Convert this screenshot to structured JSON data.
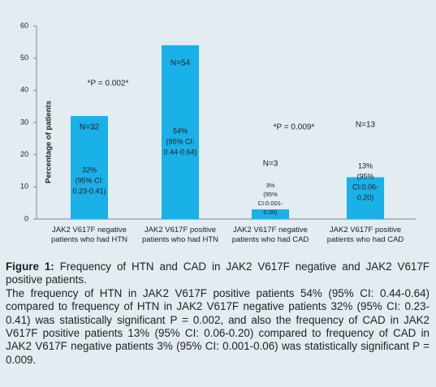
{
  "chart_data": {
    "type": "bar",
    "ylabel": "Percentage of patients",
    "categories": [
      "JAK2 V617F negative\npatients who had HTN",
      "JAK2 V617F positive\npatients who had HTN",
      "JAK2 V617F negative\npatients who had CAD",
      "JAK2 V617F positive\npatients who had CAD"
    ],
    "values": [
      32,
      54,
      3,
      13
    ],
    "value_labels": [
      "32%",
      "54%",
      "3%",
      "13%"
    ],
    "n_labels": [
      "N=32",
      "N=54",
      "N=3",
      "N=13"
    ],
    "ci_labels": [
      [
        "(95% CI:",
        "0.23-0.41)"
      ],
      [
        "(95% CI:",
        "0.44-0.64)"
      ],
      [
        "(95%",
        "CI:0.001-",
        "0.06)"
      ],
      [
        "(95%",
        "CI:0.06-",
        "0.20)"
      ]
    ],
    "annotations": [
      "*P = 0.002*",
      "*P = 0.009*"
    ],
    "color": "#1ab0e8",
    "ylim": [
      0,
      60
    ],
    "yticks": [
      0,
      10,
      20,
      30,
      40,
      50,
      60
    ],
    "grid": false
  },
  "caption": {
    "label": "Figure 1:",
    "title": "Frequency of HTN and CAD in JAK2 V617F negative and JAK2 V617F positive patients.",
    "text": "The frequency of HTN in JAK2 V617F positive patients 54% (95% CI: 0.44-0.64) compared to frequency of HTN in JAK2 V617F negative patients 32% (95% CI: 0.23-0.41) was statistically significant P = 0.002, and also the frequency of CAD in JAK2 V617F positive patients 13% (95% CI: 0.06-0.20) compared to frequency of CAD in JAK2 V617F negative patients 3% (95% CI: 0.001-0.06) was statistically significant P = 0.009."
  }
}
